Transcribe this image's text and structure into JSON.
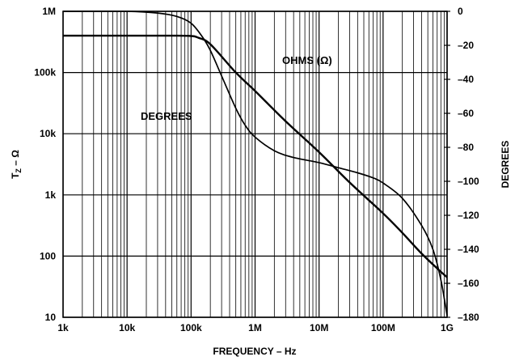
{
  "chart_data": {
    "type": "line",
    "xlabel": "FREQUENCY – Hz",
    "ylabel_left": "T",
    "ylabel_left_sub": "Z",
    "ylabel_left_suffix": " – Ω",
    "ylabel_right": "DEGREES",
    "x_scale": "log",
    "x_range": [
      1000,
      1000000000
    ],
    "x_ticks": [
      {
        "value": 1000,
        "label": "1k"
      },
      {
        "value": 10000,
        "label": "10k"
      },
      {
        "value": 100000,
        "label": "100k"
      },
      {
        "value": 1000000,
        "label": "1M"
      },
      {
        "value": 10000000,
        "label": "10M"
      },
      {
        "value": 100000000,
        "label": "100M"
      },
      {
        "value": 1000000000,
        "label": "1G"
      }
    ],
    "y_left_scale": "log",
    "y_left_range": [
      10,
      1000000
    ],
    "y_left_ticks": [
      {
        "value": 10,
        "label": "10"
      },
      {
        "value": 100,
        "label": "100"
      },
      {
        "value": 1000,
        "label": "1k"
      },
      {
        "value": 10000,
        "label": "10k"
      },
      {
        "value": 100000,
        "label": "100k"
      },
      {
        "value": 1000000,
        "label": "1M"
      }
    ],
    "y_right_range": [
      -180,
      0
    ],
    "y_right_ticks": [
      {
        "value": 0,
        "label": "0"
      },
      {
        "value": -20,
        "label": "–20"
      },
      {
        "value": -40,
        "label": "–40"
      },
      {
        "value": -60,
        "label": "–60"
      },
      {
        "value": -80,
        "label": "–80"
      },
      {
        "value": -100,
        "label": "–100"
      },
      {
        "value": -120,
        "label": "–120"
      },
      {
        "value": -140,
        "label": "–140"
      },
      {
        "value": -160,
        "label": "–160"
      },
      {
        "value": -180,
        "label": "–180"
      }
    ],
    "grid": true,
    "annotations": [
      {
        "text": "OHMS (Ω)",
        "series": "magnitude"
      },
      {
        "text": "DEGREES",
        "series": "phase"
      }
    ],
    "series": [
      {
        "axis": "left",
        "stroke_width": 2.4,
        "x": [
          1000,
          10000,
          50000,
          100000,
          130000,
          200000,
          500000,
          1000000,
          3000000,
          10000000,
          30000000,
          100000000,
          200000000,
          400000000,
          700000000,
          1000000000
        ],
        "values": [
          400000,
          400000,
          400000,
          395000,
          370000,
          290000,
          100000,
          50000,
          16000,
          5000,
          1600,
          500,
          240,
          110,
          63,
          45
        ]
      },
      {
        "axis": "right",
        "stroke_width": 1.7,
        "x": [
          1000,
          10000,
          30000,
          60000,
          100000,
          150000,
          200000,
          300000,
          500000,
          700000,
          1000000,
          2000000,
          4000000,
          10000000,
          20000000,
          40000000,
          70000000,
          100000000,
          200000000,
          400000000,
          600000000,
          800000000,
          1000000000
        ],
        "values": [
          0,
          0,
          -1,
          -3,
          -7,
          -15,
          -23,
          -38,
          -57,
          -67,
          -74,
          -82,
          -86,
          -89,
          -92,
          -95,
          -98,
          -101,
          -110,
          -126,
          -140,
          -158,
          -179
        ]
      }
    ]
  }
}
